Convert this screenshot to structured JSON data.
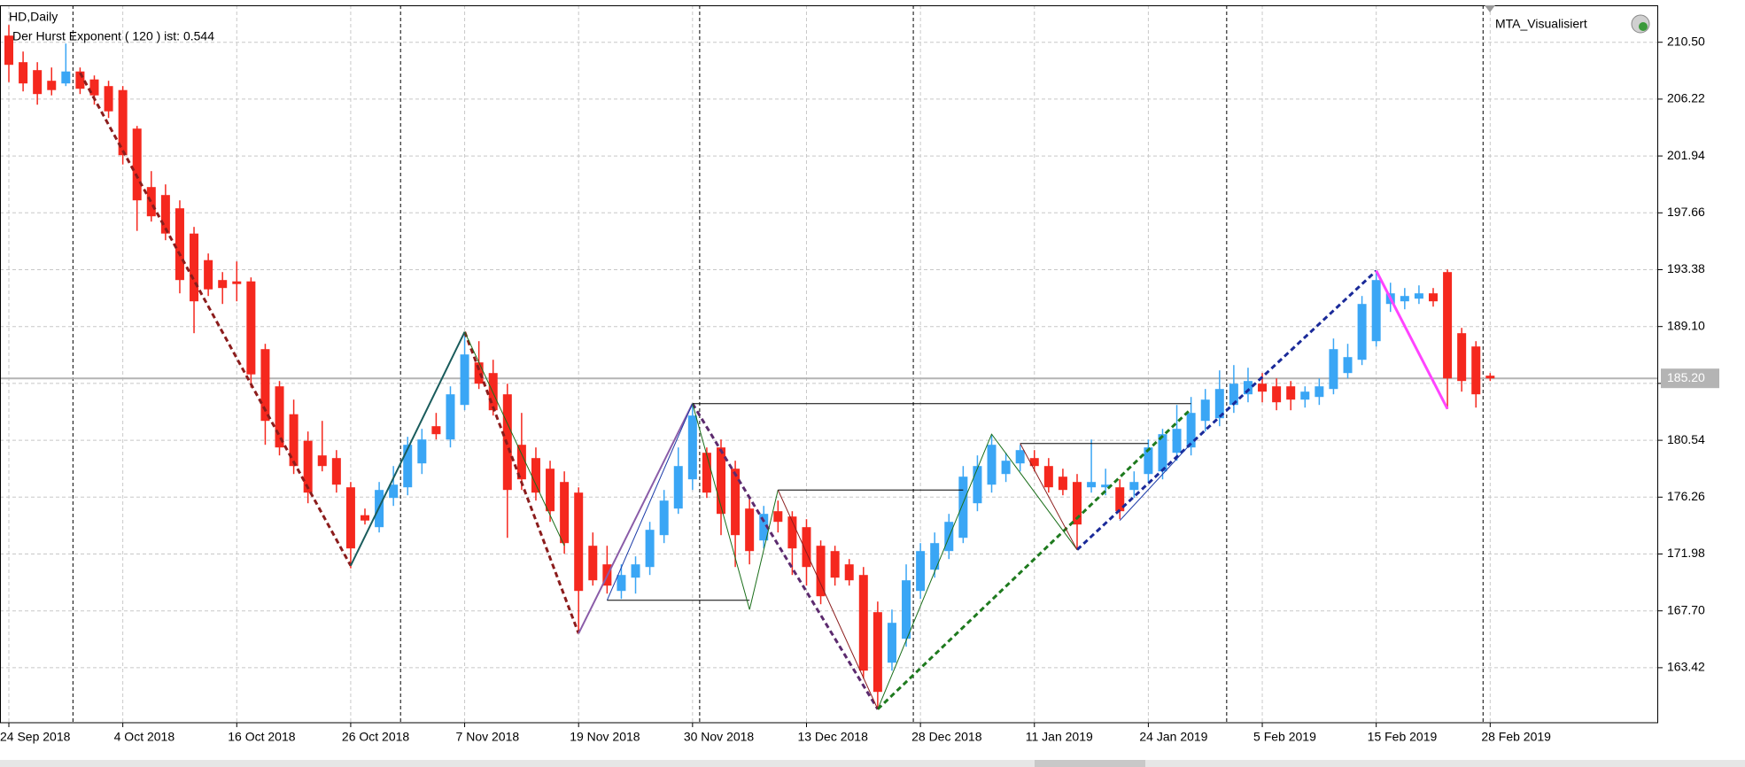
{
  "chart_data": {
    "type": "candlestick",
    "title": "HD,Daily",
    "subtitle": "Der Hurst Exponent ( 120 ) ist: 0.544",
    "indicator_label": "MTA_Visualisiert",
    "categories": [
      "24 Sep 2018",
      null,
      null,
      null,
      null,
      null,
      null,
      null,
      "4 Oct 2018",
      null,
      null,
      null,
      null,
      null,
      null,
      null,
      "16 Oct 2018",
      null,
      null,
      null,
      null,
      null,
      null,
      null,
      "26 Oct 2018",
      null,
      null,
      null,
      null,
      null,
      null,
      null,
      "7 Nov 2018",
      null,
      null,
      null,
      null,
      null,
      null,
      null,
      "19 Nov 2018",
      null,
      null,
      null,
      null,
      null,
      null,
      null,
      "30 Nov 2018",
      null,
      null,
      null,
      null,
      null,
      null,
      null,
      "13 Dec 2018",
      null,
      null,
      null,
      null,
      null,
      null,
      null,
      "28 Dec 2018",
      null,
      null,
      null,
      null,
      null,
      null,
      null,
      "11 Jan 2019",
      null,
      null,
      null,
      null,
      null,
      null,
      null,
      "24 Jan 2019",
      null,
      null,
      null,
      null,
      null,
      null,
      null,
      "5 Feb 2019",
      null,
      null,
      null,
      null,
      null,
      null,
      null,
      "15 Feb 2019",
      null,
      null,
      null,
      null,
      null,
      null,
      null,
      "28 Feb 2019"
    ],
    "open": [
      211.0,
      209.0,
      208.4,
      207.6,
      207.4,
      208.3,
      207.7,
      207.2,
      206.9,
      204.0,
      199.6,
      199.0,
      198.0,
      196.1,
      194.1,
      192.6,
      192.5,
      192.5,
      187.4,
      184.6,
      182.5,
      180.5,
      179.4,
      179.2,
      177.0,
      174.9,
      174.0,
      176.2,
      177.0,
      178.8,
      181.6,
      180.6,
      183.2,
      186.4,
      185.6,
      184.0,
      180.2,
      179.2,
      178.4,
      177.4,
      176.6,
      172.6,
      171.2,
      169.2,
      170.2,
      171.0,
      173.4,
      175.4,
      177.6,
      179.6,
      180.0,
      178.4,
      175.4,
      173.0,
      175.2,
      174.8,
      174.0,
      172.6,
      172.2,
      171.2,
      170.4,
      167.6,
      163.8,
      165.6,
      169.2,
      170.8,
      172.2,
      173.2,
      175.8,
      177.2,
      178.0,
      178.8,
      179.2,
      178.6,
      177.8,
      177.4,
      177.0,
      177.0,
      177.0,
      176.8,
      178.0,
      178.2,
      179.6,
      180.0,
      182.0,
      182.2,
      183.2,
      184.0,
      184.8,
      184.6,
      184.6,
      183.6,
      183.8,
      184.4,
      185.6,
      186.6,
      188.0,
      190.8,
      191.0,
      191.2,
      191.6,
      193.2,
      188.6,
      187.6,
      185.4
    ],
    "high": [
      211.8,
      209.8,
      209.0,
      208.6,
      210.4,
      208.6,
      208.0,
      207.6,
      207.2,
      204.2,
      200.8,
      199.8,
      198.6,
      196.6,
      194.6,
      193.2,
      194.0,
      192.8,
      187.8,
      185.0,
      183.6,
      181.2,
      182.0,
      179.8,
      177.4,
      175.4,
      177.4,
      178.6,
      180.8,
      181.4,
      182.6,
      184.6,
      188.7,
      188.0,
      186.6,
      184.8,
      182.6,
      180.0,
      179.0,
      178.2,
      177.0,
      173.6,
      172.6,
      171.2,
      171.8,
      174.4,
      176.8,
      180.0,
      183.3,
      180.0,
      180.6,
      179.0,
      176.2,
      175.6,
      176.0,
      175.2,
      174.6,
      173.0,
      172.6,
      171.6,
      171.0,
      168.4,
      167.8,
      171.2,
      172.8,
      173.6,
      175.0,
      178.6,
      179.4,
      181.0,
      179.6,
      180.2,
      179.8,
      179.2,
      178.4,
      178.0,
      180.6,
      178.4,
      177.6,
      178.2,
      180.6,
      181.4,
      183.2,
      183.8,
      184.4,
      185.8,
      186.2,
      186.0,
      185.6,
      185.2,
      185.0,
      184.6,
      185.2,
      188.2,
      187.8,
      191.4,
      193.3,
      192.4,
      192.0,
      192.2,
      192.0,
      193.4,
      189.0,
      188.0,
      185.6
    ],
    "low": [
      207.5,
      206.8,
      205.8,
      206.5,
      207.2,
      206.6,
      205.8,
      204.8,
      201.3,
      196.3,
      197.0,
      195.6,
      191.6,
      188.6,
      191.4,
      190.8,
      191.0,
      184.5,
      180.2,
      179.4,
      178.0,
      175.8,
      178.2,
      176.6,
      170.9,
      174.2,
      173.6,
      175.6,
      176.4,
      178.0,
      180.6,
      180.0,
      182.8,
      184.4,
      182.4,
      173.2,
      176.8,
      176.0,
      174.4,
      172.0,
      166.0,
      169.6,
      169.0,
      168.6,
      169.0,
      170.4,
      172.8,
      175.0,
      176.8,
      176.2,
      173.4,
      171.0,
      171.2,
      172.4,
      173.6,
      170.4,
      169.6,
      168.2,
      169.6,
      169.6,
      162.6,
      160.3,
      163.2,
      165.0,
      168.6,
      170.2,
      171.6,
      172.8,
      175.2,
      176.6,
      177.4,
      178.2,
      178.2,
      176.6,
      176.4,
      172.3,
      176.6,
      176.4,
      174.6,
      176.2,
      177.4,
      177.6,
      179.0,
      179.4,
      181.2,
      181.6,
      182.6,
      183.4,
      183.4,
      182.8,
      182.8,
      183.0,
      183.2,
      184.0,
      185.2,
      186.2,
      187.6,
      190.2,
      190.4,
      190.8,
      190.6,
      182.9,
      184.2,
      183.0,
      185.0
    ],
    "close": [
      208.8,
      207.4,
      206.6,
      206.9,
      208.3,
      207.0,
      206.5,
      205.3,
      202.0,
      198.6,
      197.4,
      196.1,
      192.6,
      191.0,
      191.9,
      192.0,
      192.3,
      185.5,
      182.0,
      180.0,
      178.6,
      176.6,
      178.6,
      177.2,
      172.4,
      174.5,
      176.8,
      177.2,
      180.2,
      180.6,
      181.0,
      184.0,
      187.0,
      184.8,
      182.8,
      176.8,
      177.6,
      176.6,
      175.2,
      172.8,
      169.2,
      170.0,
      169.6,
      170.4,
      171.2,
      173.8,
      176.0,
      178.6,
      182.4,
      176.6,
      175.0,
      173.4,
      172.2,
      175.0,
      174.4,
      172.4,
      171.0,
      168.8,
      170.2,
      170.0,
      163.2,
      161.6,
      166.8,
      170.0,
      172.2,
      172.8,
      174.4,
      177.8,
      178.6,
      180.2,
      179.0,
      179.8,
      178.6,
      177.0,
      176.8,
      174.2,
      177.4,
      177.2,
      175.2,
      177.4,
      180.0,
      181.0,
      181.4,
      182.6,
      183.6,
      184.4,
      184.8,
      185.0,
      184.2,
      183.4,
      183.6,
      184.2,
      184.6,
      187.4,
      186.8,
      190.8,
      192.6,
      191.6,
      191.4,
      191.6,
      191.0,
      185.2,
      185.0,
      184.0,
      185.2
    ],
    "up_color": "#3aa6f5",
    "down_color": "#f5281e",
    "ylim": [
      159.28,
      213.28
    ],
    "yticks": [
      {
        "value": 210.5,
        "label": "210.50"
      },
      206.22,
      201.94,
      197.66,
      193.38,
      {
        "value": 189.1,
        "label": "189.10"
      },
      184.82,
      180.54,
      176.26,
      171.98,
      {
        "value": 167.7,
        "label": "167.70"
      },
      163.42
    ],
    "grid": true,
    "bid": {
      "value": 185.2,
      "label": "185.20"
    },
    "bid_color": "#b4b4b4",
    "separators": [
      5,
      28,
      49,
      64,
      86,
      104
    ],
    "overlays": [
      {
        "color": "#8b1c1c",
        "width": 3,
        "dash": true,
        "x": [
          5,
          24
        ],
        "y": [
          208.2,
          171.1
        ]
      },
      {
        "color": "#8b1c1c",
        "width": 3,
        "dash": true,
        "x": [
          32,
          40
        ],
        "y": [
          188.7,
          166.0
        ]
      },
      {
        "color": "#5c2a6e",
        "width": 3,
        "dash": true,
        "x": [
          48,
          61
        ],
        "y": [
          183.3,
          160.3
        ]
      },
      {
        "color": "#1e7a1e",
        "width": 3,
        "dash": true,
        "x": [
          61,
          83
        ],
        "y": [
          160.3,
          182.9
        ]
      },
      {
        "color": "#1a2a99",
        "width": 3,
        "dash": true,
        "x": [
          75,
          96
        ],
        "y": [
          172.3,
          193.3
        ]
      },
      {
        "color": "#ff44ff",
        "width": 3,
        "dash": false,
        "x": [
          96,
          101
        ],
        "y": [
          193.3,
          182.9
        ]
      },
      {
        "color": "#1a5c5c",
        "width": 2,
        "dash": false,
        "x": [
          24,
          32
        ],
        "y": [
          171.1,
          188.7
        ]
      },
      {
        "color": "#1a6e1a",
        "width": 1,
        "dash": false,
        "x": [
          32,
          39
        ],
        "y": [
          188.7,
          172.6
        ]
      },
      {
        "color": "#8a5ca8",
        "width": 2,
        "dash": false,
        "x": [
          40,
          48
        ],
        "y": [
          166.0,
          183.3
        ]
      },
      {
        "color": "#1a3aa8",
        "width": 1,
        "dash": false,
        "x": [
          42,
          48
        ],
        "y": [
          168.5,
          183.3
        ]
      },
      {
        "color": "#000000",
        "width": 1,
        "dash": false,
        "x": [
          42,
          52
        ],
        "y": [
          168.5,
          168.5
        ]
      },
      {
        "color": "#000000",
        "width": 1,
        "dash": false,
        "x": [
          48,
          83
        ],
        "y": [
          183.3,
          183.3
        ]
      },
      {
        "color": "#1a6e1a",
        "width": 1,
        "dash": false,
        "x": [
          48,
          52,
          54
        ],
        "y": [
          183.3,
          167.8,
          176.8
        ]
      },
      {
        "color": "#8b1c1c",
        "width": 1,
        "dash": false,
        "x": [
          54,
          61
        ],
        "y": [
          176.8,
          160.3
        ]
      },
      {
        "color": "#000000",
        "width": 1,
        "dash": false,
        "x": [
          54,
          67
        ],
        "y": [
          176.8,
          176.8
        ]
      },
      {
        "color": "#1a6e1a",
        "width": 1,
        "dash": false,
        "x": [
          61,
          69,
          75
        ],
        "y": [
          160.3,
          181.0,
          172.3
        ]
      },
      {
        "color": "#000000",
        "width": 1,
        "dash": false,
        "x": [
          71,
          80
        ],
        "y": [
          180.3,
          180.3
        ]
      },
      {
        "color": "#8b1c1c",
        "width": 1,
        "dash": false,
        "x": [
          71,
          75
        ],
        "y": [
          180.3,
          172.3
        ]
      },
      {
        "color": "#1a3aa8",
        "width": 1,
        "dash": false,
        "x": [
          78,
          83
        ],
        "y": [
          174.5,
          180.3
        ]
      }
    ]
  }
}
